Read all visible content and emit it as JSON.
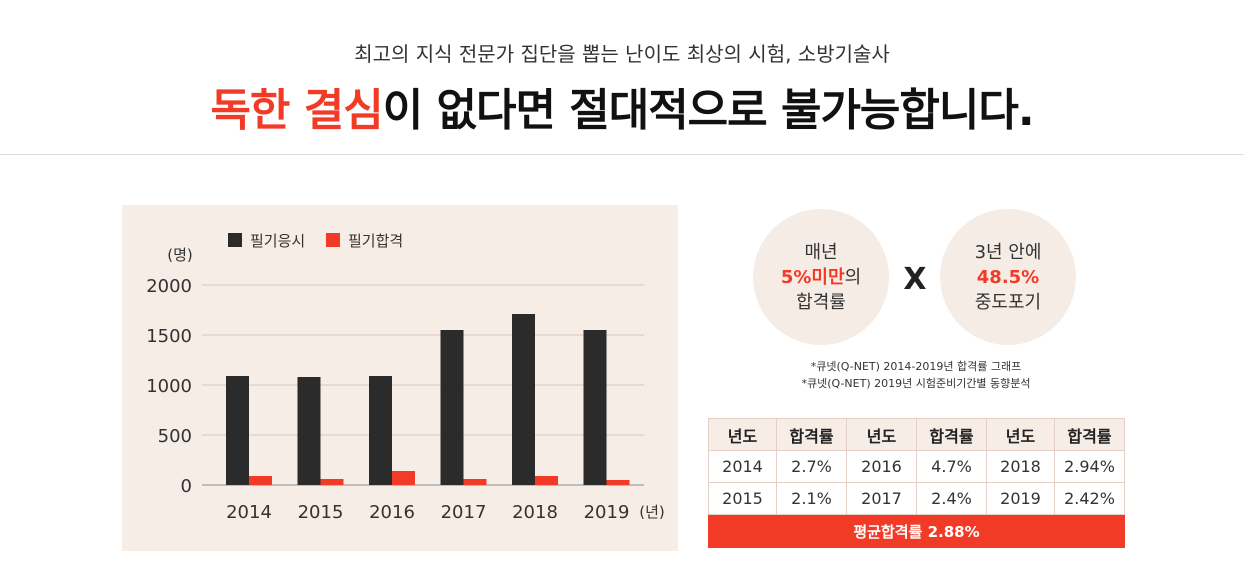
{
  "header": {
    "subtitle": "최고의 지식 전문가 집단을 뽑는 난이도 최상의 시험, 소방기술사",
    "headline_accent": "독한 결심",
    "headline_rest": "이 없다면 절대적으로 불가능합니다."
  },
  "colors": {
    "accent": "#f23b26",
    "applicants_bar": "#2b2b2b",
    "chart_panel_bg": "#f7ede7"
  },
  "chart_data": {
    "type": "bar",
    "title": "",
    "ylabel": "(명)",
    "xlabel": "(년)",
    "ylim": [
      0,
      2000
    ],
    "yticks": [
      0,
      500,
      1000,
      1500,
      2000
    ],
    "categories": [
      "2014",
      "2015",
      "2016",
      "2017",
      "2018",
      "2019"
    ],
    "series": [
      {
        "name": "필기응시",
        "color": "#2b2b2b",
        "values": [
          1090,
          1080,
          1090,
          1550,
          1710,
          1550
        ]
      },
      {
        "name": "필기합격",
        "color": "#f23b26",
        "values": [
          90,
          60,
          140,
          60,
          90,
          50
        ]
      }
    ],
    "legend_position": "top-left"
  },
  "stats": {
    "left_circle": {
      "line1": "매년",
      "highlight": "5%미만",
      "suffix": "의",
      "line3": "합격률"
    },
    "times_symbol": "X",
    "right_circle": {
      "line1": "3년 안에",
      "highlight": "48.5%",
      "line3": "중도포기"
    }
  },
  "notes": [
    "*큐넷(Q-NET) 2014-2019년 합격률 그래프",
    "*큐넷(Q-NET) 2019년 시험준비기간별 동향분석"
  ],
  "table": {
    "headers": [
      "년도",
      "합격률",
      "년도",
      "합격률",
      "년도",
      "합격률"
    ],
    "rows": [
      [
        "2014",
        "2.7%",
        "2016",
        "4.7%",
        "2018",
        "2.94%"
      ],
      [
        "2015",
        "2.1%",
        "2017",
        "2.4%",
        "2019",
        "2.42%"
      ]
    ],
    "average_label": "평균합격률",
    "average_value": "2.88%"
  }
}
